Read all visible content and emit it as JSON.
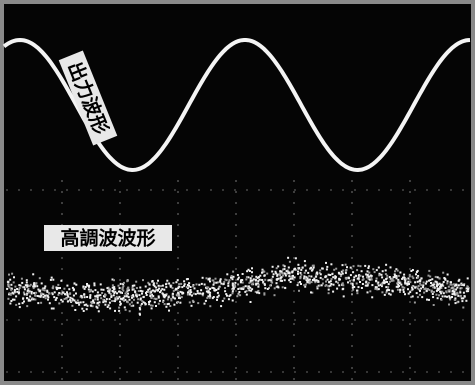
{
  "labels": {
    "output": "出力波形",
    "harmonic": "高調波波形"
  }
}
